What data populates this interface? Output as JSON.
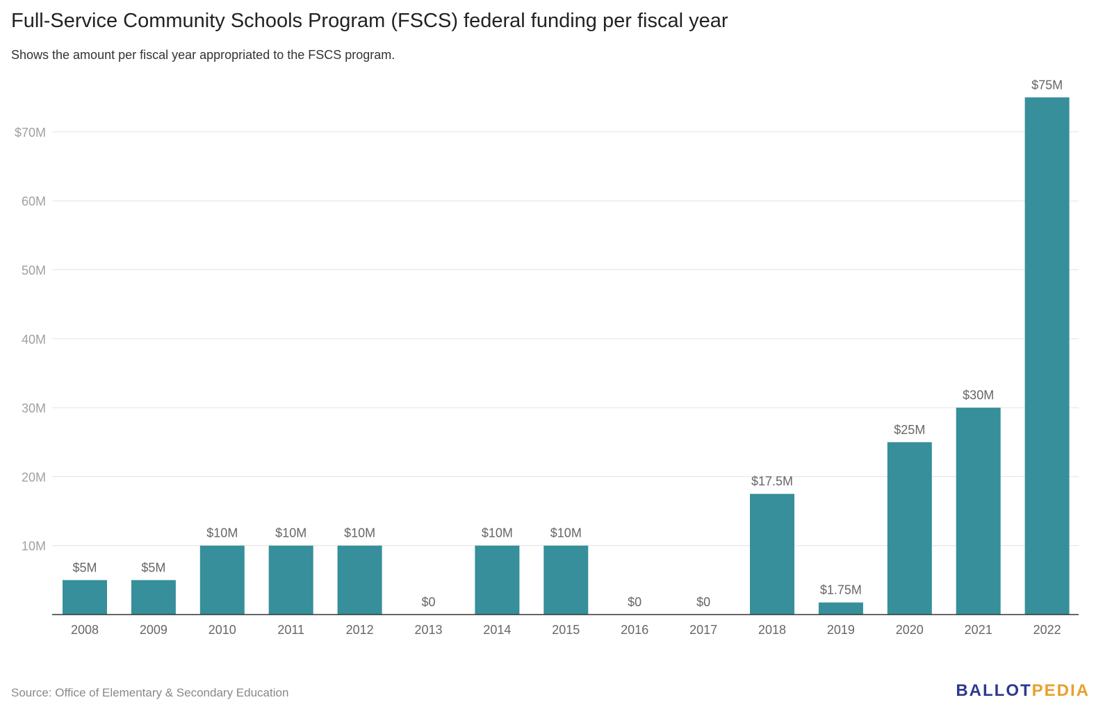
{
  "header": {
    "title": "Full-Service Community Schools Program (FSCS) federal funding per fiscal year",
    "subtitle": "Shows the amount per fiscal year appropriated to the FSCS program."
  },
  "footer": {
    "source": "Source: Office of Elementary & Secondary Education",
    "logo_part1": "BALLOT",
    "logo_part2": "PEDIA"
  },
  "colors": {
    "bar": "#368f9a",
    "grid": "#e2e2e2",
    "axis": "#333333",
    "tick_text": "#a0a0a0",
    "label_text": "#666666",
    "logo_blue": "#2b3990",
    "logo_gold": "#e8a02c"
  },
  "chart_data": {
    "type": "bar",
    "title": "Full-Service Community Schools Program (FSCS) federal funding per fiscal year",
    "subtitle": "Shows the amount per fiscal year appropriated to the FSCS program.",
    "xlabel": "",
    "ylabel": "",
    "ylim": [
      0,
      79
    ],
    "grid": true,
    "categories": [
      "2008",
      "2009",
      "2010",
      "2011",
      "2012",
      "2013",
      "2014",
      "2015",
      "2016",
      "2017",
      "2018",
      "2019",
      "2020",
      "2021",
      "2022"
    ],
    "values": [
      5,
      5,
      10,
      10,
      10,
      0,
      10,
      10,
      0,
      0,
      17.5,
      1.75,
      25,
      30,
      75
    ],
    "value_labels": [
      "$5M",
      "$5M",
      "$10M",
      "$10M",
      "$10M",
      "$0",
      "$10M",
      "$10M",
      "$0",
      "$0",
      "$17.5M",
      "$1.75M",
      "$25M",
      "$30M",
      "$75M"
    ],
    "y_ticks": [
      10,
      20,
      30,
      40,
      50,
      60,
      70
    ],
    "y_tick_labels": [
      "10M",
      "20M",
      "30M",
      "40M",
      "50M",
      "60M",
      "$70M"
    ]
  }
}
